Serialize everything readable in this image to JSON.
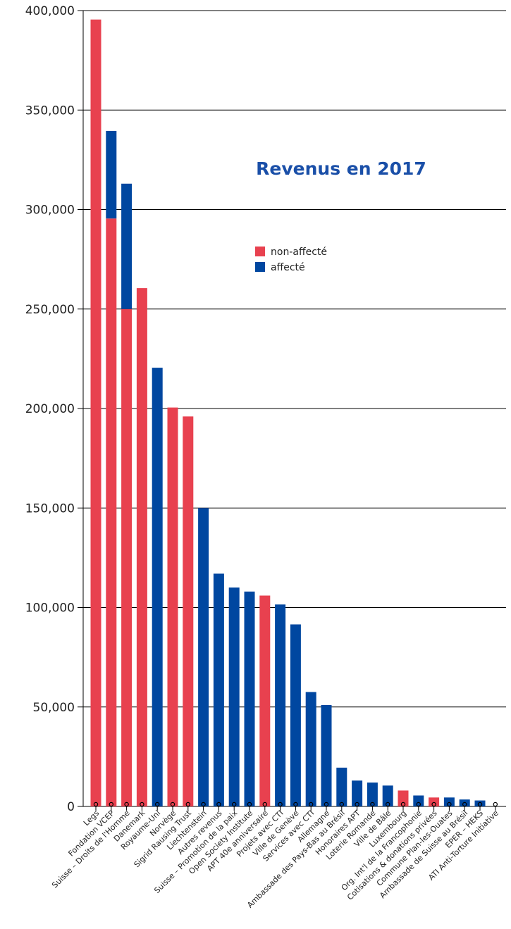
{
  "chart_data": {
    "type": "bar",
    "stacked": true,
    "title": "Revenus en 2017",
    "xlabel": "",
    "ylabel": "",
    "ylim": [
      0,
      400000
    ],
    "y_ticks": [
      "0",
      "50,000",
      "100,000",
      "150,000",
      "200,000",
      "250,000",
      "300,000",
      "350,000",
      "400,000"
    ],
    "grid": "horizontal",
    "legend_position": "center-right",
    "categories": [
      "Legs",
      "Fondation VCEP",
      "Suisse – Droits de l'Homme",
      "Danemark",
      "Royaume-Uni",
      "Norvège",
      "Sigrid Rausing Trust",
      "Liechtenstein",
      "Autres revenus",
      "Suisse – Promotion de la paix",
      "Open Society Institute",
      "APT 40e anniversaire",
      "Projets avec CTI",
      "Ville de Genève",
      "Services avec CTI",
      "Allemagne",
      "Ambassade des Pays-Bas au Brésil",
      "Honoraires APT",
      "Loterie Romande",
      "Ville de Bâle",
      "Luxembourg",
      "Org. Int'l de la Francophonie",
      "Cotisations & donations privées",
      "Commune Plan-les-Ouates",
      "Ambassade de Suisse au Brésil",
      "EPER – HEKS",
      "ATI Anti-Torture Initiative"
    ],
    "series": [
      {
        "name": "non-affecté",
        "color": "#e8414f",
        "values": [
          395500,
          295500,
          250000,
          260500,
          0,
          200500,
          196000,
          0,
          0,
          0,
          0,
          106000,
          0,
          0,
          0,
          0,
          0,
          0,
          0,
          0,
          8000,
          0,
          4500,
          0,
          0,
          0,
          0
        ]
      },
      {
        "name": "affecté",
        "color": "#0047a0",
        "values": [
          0,
          44000,
          63000,
          0,
          220500,
          0,
          0,
          150000,
          117000,
          110000,
          108000,
          0,
          101500,
          91500,
          57500,
          51000,
          19500,
          13000,
          12000,
          10500,
          0,
          5500,
          0,
          4500,
          3500,
          3000,
          0
        ]
      }
    ]
  },
  "colors": {
    "title": "#1a4fa8",
    "axis": "#000000"
  }
}
